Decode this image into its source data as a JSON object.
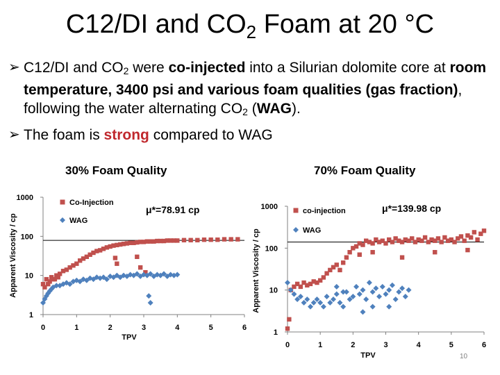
{
  "slide": {
    "title_pre": "C12/DI and CO",
    "title_sub": "2",
    "title_post": " Foam at 20 °C",
    "bullet1": {
      "t1": "C12/DI and CO",
      "s1": "2",
      "t2": " were ",
      "b1": "co-injected",
      "t3": " into a Silurian dolomite core at ",
      "b2": "room temperature, 3400 psi and various foam qualities (gas fraction)",
      "t4": ", following the water alternating CO",
      "s2": "2",
      "t5": " (",
      "b3": "WAG",
      "t6": ")."
    },
    "bullet2": {
      "t1": "The foam is ",
      "r1": "strong",
      "t2": " compared to WAG"
    },
    "page_number": "10"
  },
  "colors": {
    "coinjection": "#c0504d",
    "wag": "#4f81bd"
  },
  "chart_data": [
    {
      "type": "scatter",
      "title": "30% Foam Quality",
      "xlabel": "TPV",
      "ylabel": "Apparent Viscosity / cp",
      "xlim": [
        0,
        6
      ],
      "ylim": [
        1,
        1000
      ],
      "yscale": "log",
      "xticks": [
        "0",
        "1",
        "2",
        "3",
        "4",
        "5",
        "6"
      ],
      "yticks": [
        "1",
        "10",
        "100",
        "1000"
      ],
      "legend": [
        "Co-Injection",
        "WAG"
      ],
      "legend_position": "top-left",
      "annotation": "μ*=78.91 cp",
      "reference_line_y": 78.91,
      "series": [
        {
          "name": "Co-Injection",
          "points": [
            [
              0.0,
              6
            ],
            [
              0.05,
              5
            ],
            [
              0.1,
              8
            ],
            [
              0.15,
              6
            ],
            [
              0.2,
              7
            ],
            [
              0.25,
              9
            ],
            [
              0.3,
              8
            ],
            [
              0.35,
              8
            ],
            [
              0.4,
              10
            ],
            [
              0.45,
              9
            ],
            [
              0.5,
              11
            ],
            [
              0.6,
              13
            ],
            [
              0.7,
              14
            ],
            [
              0.8,
              16
            ],
            [
              0.9,
              18
            ],
            [
              1.0,
              20
            ],
            [
              1.1,
              24
            ],
            [
              1.2,
              27
            ],
            [
              1.3,
              30
            ],
            [
              1.4,
              34
            ],
            [
              1.5,
              38
            ],
            [
              1.6,
              42
            ],
            [
              1.7,
              44
            ],
            [
              1.8,
              48
            ],
            [
              1.9,
              52
            ],
            [
              2.0,
              55
            ],
            [
              2.1,
              58
            ],
            [
              2.2,
              60
            ],
            [
              2.3,
              62
            ],
            [
              2.4,
              64
            ],
            [
              2.5,
              66
            ],
            [
              2.6,
              68
            ],
            [
              2.7,
              68
            ],
            [
              2.8,
              70
            ],
            [
              2.9,
              72
            ],
            [
              3.0,
              72
            ],
            [
              3.1,
              74
            ],
            [
              3.2,
              74
            ],
            [
              3.3,
              74
            ],
            [
              3.4,
              76
            ],
            [
              3.5,
              76
            ],
            [
              3.6,
              76
            ],
            [
              3.7,
              78
            ],
            [
              3.8,
              78
            ],
            [
              3.9,
              78
            ],
            [
              4.0,
              78
            ],
            [
              4.2,
              80
            ],
            [
              4.4,
              80
            ],
            [
              4.6,
              80
            ],
            [
              4.8,
              82
            ],
            [
              5.0,
              82
            ],
            [
              5.2,
              82
            ],
            [
              5.4,
              84
            ],
            [
              5.6,
              84
            ],
            [
              5.8,
              84
            ],
            [
              2.15,
              28
            ],
            [
              2.2,
              20
            ],
            [
              2.8,
              30
            ],
            [
              2.9,
              16
            ],
            [
              3.05,
              12
            ]
          ]
        },
        {
          "name": "WAG",
          "points": [
            [
              0.0,
              2.0
            ],
            [
              0.05,
              2.5
            ],
            [
              0.1,
              3.0
            ],
            [
              0.15,
              3.5
            ],
            [
              0.2,
              4.0
            ],
            [
              0.25,
              4.5
            ],
            [
              0.3,
              5.0
            ],
            [
              0.4,
              5.5
            ],
            [
              0.5,
              5.5
            ],
            [
              0.6,
              6.0
            ],
            [
              0.7,
              6.5
            ],
            [
              0.8,
              6.0
            ],
            [
              0.9,
              7.0
            ],
            [
              1.0,
              7.5
            ],
            [
              1.1,
              7.0
            ],
            [
              1.2,
              8.0
            ],
            [
              1.3,
              7.5
            ],
            [
              1.4,
              8.5
            ],
            [
              1.5,
              8.0
            ],
            [
              1.6,
              9.0
            ],
            [
              1.7,
              8.5
            ],
            [
              1.8,
              9.0
            ],
            [
              1.9,
              8.0
            ],
            [
              2.0,
              9.5
            ],
            [
              2.1,
              9.0
            ],
            [
              2.2,
              10.0
            ],
            [
              2.3,
              9.0
            ],
            [
              2.4,
              10.0
            ],
            [
              2.5,
              9.5
            ],
            [
              2.6,
              10.5
            ],
            [
              2.7,
              10.0
            ],
            [
              2.8,
              11.0
            ],
            [
              2.9,
              9.5
            ],
            [
              3.0,
              10.5
            ],
            [
              3.1,
              10.0
            ],
            [
              3.2,
              11.0
            ],
            [
              3.3,
              9.5
            ],
            [
              3.4,
              10.5
            ],
            [
              3.5,
              10.0
            ],
            [
              3.6,
              11.0
            ],
            [
              3.7,
              9.5
            ],
            [
              3.8,
              10.5
            ],
            [
              3.9,
              10.0
            ],
            [
              4.0,
              10.5
            ],
            [
              3.15,
              3.0
            ],
            [
              3.2,
              2.0
            ]
          ]
        }
      ]
    },
    {
      "type": "scatter",
      "title": "70% Foam Quality",
      "xlabel": "TPV",
      "ylabel": "Apparent Viscosity / cp",
      "xlim": [
        0,
        6
      ],
      "ylim": [
        1,
        1000
      ],
      "yscale": "log",
      "xticks": [
        "0",
        "1",
        "2",
        "3",
        "4",
        "5",
        "6"
      ],
      "yticks": [
        "1",
        "10",
        "100",
        "1000"
      ],
      "legend": [
        "co-injection",
        "WAG"
      ],
      "legend_position": "top-left",
      "annotation": "μ*=139.98 cp",
      "reference_line_y": 139.98,
      "series": [
        {
          "name": "co-injection",
          "points": [
            [
              0.0,
              1.2
            ],
            [
              0.05,
              2.0
            ],
            [
              0.1,
              10
            ],
            [
              0.2,
              12
            ],
            [
              0.3,
              14
            ],
            [
              0.4,
              12
            ],
            [
              0.5,
              15
            ],
            [
              0.6,
              13
            ],
            [
              0.7,
              14
            ],
            [
              0.8,
              16
            ],
            [
              0.9,
              15
            ],
            [
              1.0,
              17
            ],
            [
              1.1,
              20
            ],
            [
              1.2,
              25
            ],
            [
              1.3,
              30
            ],
            [
              1.4,
              35
            ],
            [
              1.5,
              40
            ],
            [
              1.6,
              30
            ],
            [
              1.7,
              45
            ],
            [
              1.8,
              60
            ],
            [
              1.9,
              80
            ],
            [
              2.0,
              100
            ],
            [
              2.1,
              110
            ],
            [
              2.2,
              130
            ],
            [
              2.3,
              120
            ],
            [
              2.4,
              150
            ],
            [
              2.5,
              140
            ],
            [
              2.6,
              130
            ],
            [
              2.7,
              160
            ],
            [
              2.8,
              140
            ],
            [
              2.9,
              150
            ],
            [
              3.0,
              130
            ],
            [
              3.1,
              160
            ],
            [
              3.2,
              140
            ],
            [
              3.3,
              170
            ],
            [
              3.4,
              150
            ],
            [
              3.5,
              140
            ],
            [
              3.6,
              160
            ],
            [
              3.7,
              150
            ],
            [
              3.8,
              170
            ],
            [
              3.9,
              140
            ],
            [
              4.0,
              160
            ],
            [
              4.1,
              150
            ],
            [
              4.2,
              180
            ],
            [
              4.3,
              140
            ],
            [
              4.4,
              160
            ],
            [
              4.5,
              150
            ],
            [
              4.6,
              170
            ],
            [
              4.7,
              140
            ],
            [
              4.8,
              180
            ],
            [
              4.9,
              150
            ],
            [
              5.0,
              160
            ],
            [
              5.1,
              140
            ],
            [
              5.2,
              170
            ],
            [
              5.3,
              190
            ],
            [
              5.4,
              150
            ],
            [
              5.5,
              200
            ],
            [
              5.6,
              180
            ],
            [
              5.7,
              240
            ],
            [
              5.8,
              160
            ],
            [
              5.9,
              220
            ],
            [
              6.0,
              260
            ],
            [
              2.2,
              70
            ],
            [
              2.6,
              80
            ],
            [
              3.5,
              60
            ],
            [
              4.5,
              80
            ],
            [
              5.5,
              90
            ]
          ]
        },
        {
          "name": "WAG",
          "points": [
            [
              0.0,
              15
            ],
            [
              0.1,
              10
            ],
            [
              0.2,
              8
            ],
            [
              0.3,
              6
            ],
            [
              0.4,
              7
            ],
            [
              0.5,
              5
            ],
            [
              0.6,
              6
            ],
            [
              0.7,
              4
            ],
            [
              0.8,
              5
            ],
            [
              0.9,
              6
            ],
            [
              1.0,
              5
            ],
            [
              1.1,
              4
            ],
            [
              1.2,
              7
            ],
            [
              1.3,
              5
            ],
            [
              1.4,
              6
            ],
            [
              1.5,
              8
            ],
            [
              1.6,
              5
            ],
            [
              1.7,
              4
            ],
            [
              1.8,
              9
            ],
            [
              1.9,
              6
            ],
            [
              2.0,
              7
            ],
            [
              2.1,
              12
            ],
            [
              2.2,
              8
            ],
            [
              2.3,
              10
            ],
            [
              2.4,
              6
            ],
            [
              2.5,
              15
            ],
            [
              2.6,
              9
            ],
            [
              2.7,
              11
            ],
            [
              2.8,
              7
            ],
            [
              2.9,
              12
            ],
            [
              3.0,
              8
            ],
            [
              3.1,
              10
            ],
            [
              3.2,
              13
            ],
            [
              3.3,
              6
            ],
            [
              3.4,
              9
            ],
            [
              3.5,
              11
            ],
            [
              3.6,
              7
            ],
            [
              3.7,
              10
            ],
            [
              1.5,
              12
            ],
            [
              1.7,
              9
            ],
            [
              2.3,
              3
            ],
            [
              2.6,
              4
            ],
            [
              3.1,
              4
            ]
          ]
        }
      ]
    }
  ]
}
